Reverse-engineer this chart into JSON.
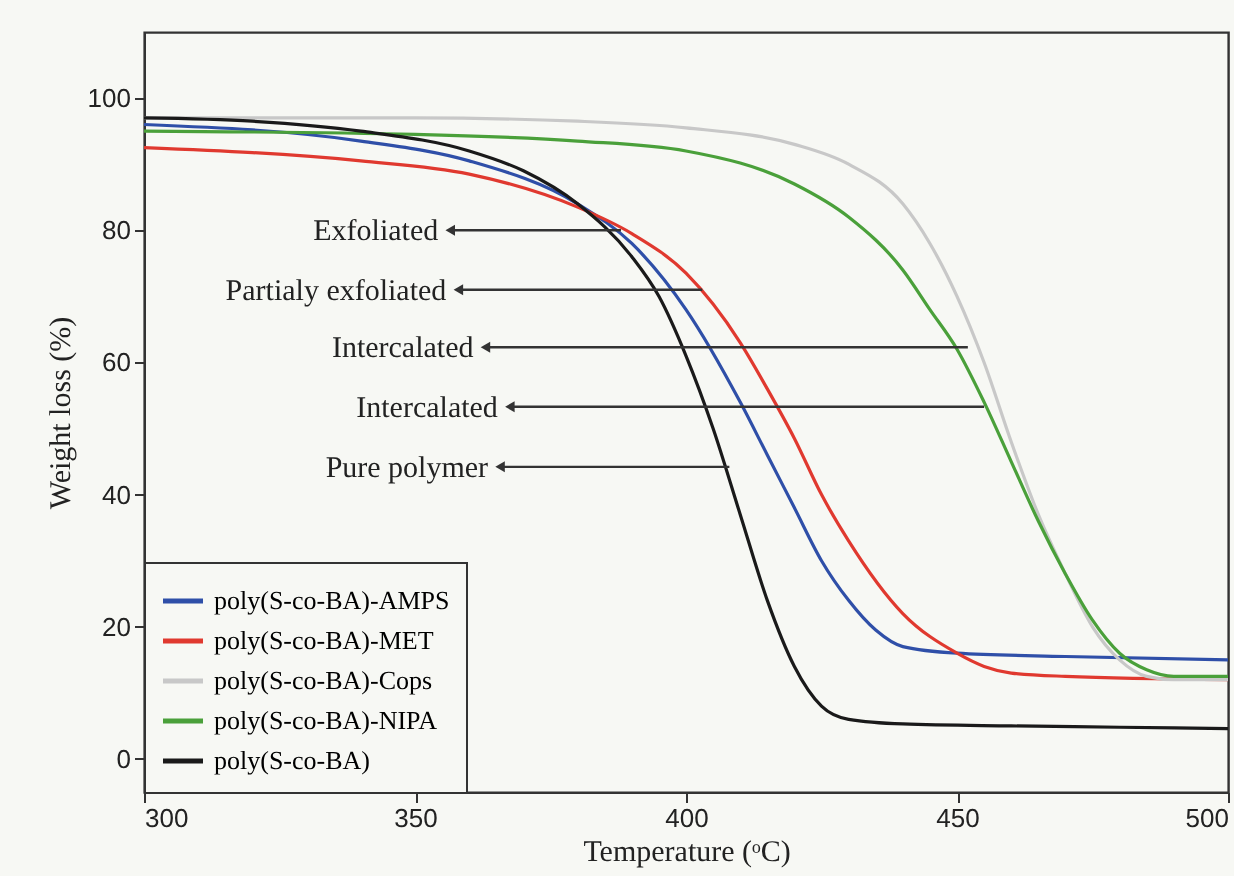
{
  "chart_data": {
    "type": "line",
    "xlabel": "Temperature (ᵒC)",
    "ylabel": "Weight loss (%)",
    "xlim": [
      300,
      500
    ],
    "xticks": [
      300,
      350,
      400,
      450,
      500
    ],
    "ylim": [
      -5,
      110
    ],
    "yticks": [
      0,
      20,
      40,
      60,
      80,
      100
    ],
    "grid": false,
    "legend": "bottom left",
    "marker": "none",
    "line_style": "solid",
    "series": [
      {
        "name": "poly(S-co-BA)-AMPS",
        "color": "#2f4fa8",
        "x": [
          300,
          340,
          360,
          380,
          390,
          400,
          410,
          415,
          420,
          425,
          430,
          435,
          440,
          450,
          470,
          500
        ],
        "values": [
          96,
          93.5,
          90.5,
          84,
          78,
          68,
          54,
          46,
          38,
          30,
          24,
          19.5,
          17,
          16,
          15.5,
          15
        ]
      },
      {
        "name": "poly(S-co-BA)-MET",
        "color": "#e0392f",
        "x": [
          300,
          340,
          360,
          380,
          390,
          400,
          410,
          415,
          420,
          425,
          430,
          440,
          450,
          455,
          460,
          470,
          500
        ],
        "values": [
          92.5,
          90.5,
          88.5,
          83.5,
          79.5,
          73.5,
          63,
          56,
          48.5,
          40,
          33,
          22,
          16,
          14,
          13,
          12.5,
          12
        ]
      },
      {
        "name": "poly(S-co-BA)-Cops",
        "color": "#c8c8c8",
        "x": [
          300,
          350,
          380,
          400,
          420,
          430,
          440,
          445,
          450,
          455,
          460,
          465,
          470,
          475,
          480,
          485,
          490,
          500
        ],
        "values": [
          97,
          97,
          96.5,
          95.5,
          93,
          90,
          84,
          78,
          70,
          60,
          48,
          37,
          28,
          20,
          15,
          12.5,
          12,
          12
        ]
      },
      {
        "name": "poly(S-co-BA)-NIPA",
        "color": "#4aa03a",
        "x": [
          300,
          350,
          380,
          400,
          420,
          430,
          440,
          445,
          450,
          455,
          460,
          465,
          470,
          475,
          480,
          485,
          490,
          500
        ],
        "values": [
          95,
          94.5,
          93.5,
          92,
          87,
          82,
          74,
          68,
          62,
          54,
          45,
          36,
          28,
          21,
          16,
          13.5,
          12.5,
          12.5
        ]
      },
      {
        "name": "poly(S-co-BA)",
        "color": "#1a1a1a",
        "x": [
          300,
          320,
          340,
          360,
          370,
          380,
          390,
          395,
          400,
          405,
          410,
          415,
          420,
          425,
          430,
          440,
          460,
          480,
          500
        ],
        "values": [
          97,
          96.5,
          95,
          92,
          89,
          84,
          76,
          70,
          61,
          50,
          37,
          24,
          14,
          8,
          6,
          5.3,
          5,
          4.8,
          4.6
        ]
      }
    ],
    "annotations": [
      {
        "text": "Exfoliated",
        "x": 388,
        "y": 80
      },
      {
        "text": "Partialy exfoliated",
        "x": 403,
        "y": 71
      },
      {
        "text": "Intercalated",
        "x": 452,
        "y": 62.3
      },
      {
        "text": "Intercalated",
        "x": 455,
        "y": 53.3
      },
      {
        "text": "Pure polymer",
        "x": 408,
        "y": 44.2
      }
    ]
  }
}
